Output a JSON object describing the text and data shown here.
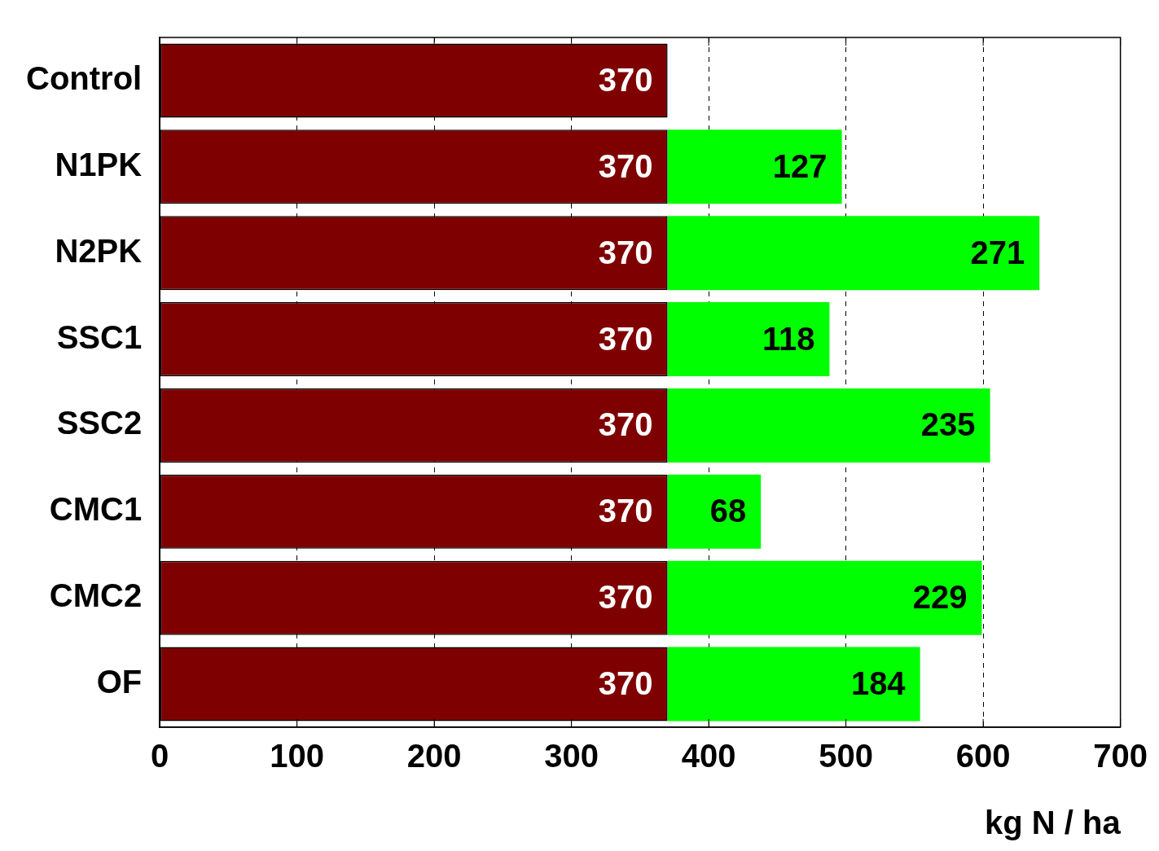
{
  "chart_data": {
    "type": "bar",
    "orientation": "horizontal",
    "stacked": true,
    "xlabel": "kg N / ha",
    "categories": [
      "Control",
      "N1PK",
      "N2PK",
      "SSC1",
      "SSC2",
      "CMC1",
      "CMC2",
      "OF"
    ],
    "series": [
      {
        "color": "#7f0000",
        "values": [
          370,
          370,
          370,
          370,
          370,
          370,
          370,
          370
        ]
      },
      {
        "color": "#00ff00",
        "values": [
          null,
          127,
          271,
          118,
          235,
          68,
          229,
          184
        ]
      }
    ],
    "xlim": [
      0,
      700
    ],
    "xticks": [
      0,
      100,
      200,
      300,
      400,
      500,
      600,
      700
    ],
    "grid": "x",
    "line_style": "dashed",
    "data_labels": true,
    "legend": false
  }
}
